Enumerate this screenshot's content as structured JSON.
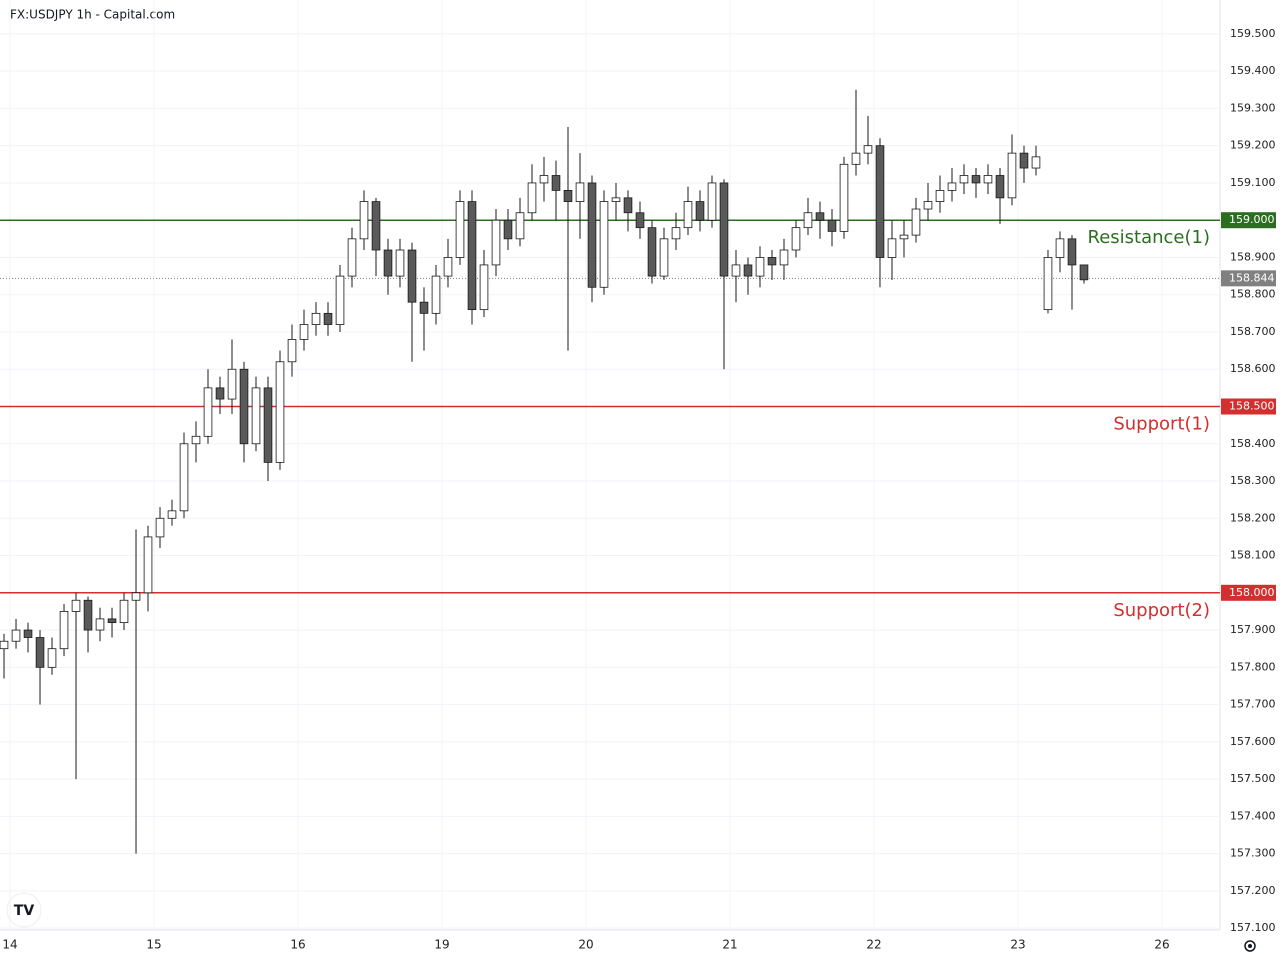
{
  "chart_data": {
    "type": "candlestick",
    "title": "FX:USDJPY 1h - Capital.com",
    "x": [
      -1,
      1,
      3,
      5,
      7,
      9,
      11,
      13,
      15,
      17,
      19,
      21,
      23,
      25,
      27,
      29,
      31,
      33,
      35,
      37,
      39,
      41,
      43,
      45,
      47,
      49,
      51,
      53,
      55,
      57,
      59,
      61,
      63,
      65,
      67,
      69,
      71,
      73,
      75,
      77,
      79,
      81,
      83,
      85,
      87,
      89,
      91,
      93,
      95,
      97,
      99,
      101,
      103,
      105,
      107,
      109,
      111,
      113,
      115,
      117,
      119,
      121,
      123,
      125,
      127,
      129,
      131,
      133,
      135,
      137,
      139,
      141,
      143,
      145,
      147,
      149,
      151,
      153,
      155,
      157,
      159,
      161,
      163,
      165,
      167,
      169,
      171,
      173,
      175,
      177,
      179
    ],
    "open": [
      157.85,
      157.87,
      157.9,
      157.88,
      157.8,
      157.85,
      157.95,
      157.98,
      157.9,
      157.93,
      157.92,
      157.98,
      158.0,
      158.15,
      158.2,
      158.22,
      158.4,
      158.42,
      158.55,
      158.52,
      158.6,
      158.4,
      158.55,
      158.35,
      158.62,
      158.68,
      158.72,
      158.75,
      158.72,
      158.85,
      158.95,
      159.05,
      158.92,
      158.85,
      158.92,
      158.78,
      158.75,
      158.85,
      158.9,
      159.05,
      158.76,
      158.88,
      159.0,
      158.95,
      159.02,
      159.1,
      159.12,
      159.08,
      159.05,
      159.1,
      158.82,
      159.05,
      159.06,
      159.02,
      158.98,
      158.85,
      158.95,
      158.98,
      159.05,
      159.0,
      159.1,
      158.85,
      158.88,
      158.85,
      158.9,
      158.88,
      158.92,
      158.98,
      159.02,
      159.0,
      158.97,
      159.15,
      159.18,
      159.2,
      158.9,
      158.95,
      158.96,
      159.03,
      159.05,
      159.08,
      159.1,
      159.12,
      159.1,
      159.12,
      159.06,
      159.18,
      159.14,
      158.76,
      158.9,
      158.95,
      158.88
    ],
    "high": [
      157.89,
      157.93,
      157.92,
      157.9,
      157.88,
      157.97,
      158.0,
      157.99,
      157.96,
      157.96,
      158.0,
      158.17,
      158.18,
      158.23,
      158.25,
      158.43,
      158.46,
      158.6,
      158.58,
      158.68,
      158.62,
      158.58,
      158.58,
      158.65,
      158.72,
      158.76,
      158.78,
      158.78,
      158.88,
      158.98,
      159.08,
      159.06,
      158.95,
      158.95,
      158.94,
      158.82,
      158.88,
      158.95,
      159.08,
      159.08,
      158.92,
      159.03,
      159.03,
      159.06,
      159.15,
      159.17,
      159.16,
      159.25,
      159.18,
      159.12,
      159.08,
      159.1,
      159.08,
      159.05,
      159.0,
      158.98,
      159.02,
      159.09,
      159.08,
      159.12,
      159.11,
      158.92,
      158.9,
      158.93,
      158.92,
      158.95,
      159.0,
      159.06,
      159.05,
      159.03,
      159.17,
      159.35,
      159.28,
      159.22,
      159.0,
      159.0,
      159.06,
      159.1,
      159.12,
      159.14,
      159.15,
      159.14,
      159.15,
      159.14,
      159.23,
      159.2,
      159.2,
      158.92,
      158.97,
      158.96,
      158.87
    ],
    "low": [
      157.77,
      157.85,
      157.84,
      157.7,
      157.78,
      157.83,
      157.5,
      157.84,
      157.87,
      157.88,
      157.9,
      157.3,
      157.95,
      158.12,
      158.18,
      158.2,
      158.35,
      158.4,
      158.48,
      158.48,
      158.35,
      158.38,
      158.3,
      158.33,
      158.58,
      158.65,
      158.69,
      158.69,
      158.7,
      158.82,
      158.92,
      158.85,
      158.8,
      158.82,
      158.62,
      158.65,
      158.72,
      158.82,
      158.88,
      158.72,
      158.74,
      158.85,
      158.92,
      158.93,
      159.0,
      159.05,
      159.0,
      158.65,
      158.95,
      158.78,
      158.8,
      159.0,
      158.97,
      158.95,
      158.83,
      158.84,
      158.92,
      158.96,
      158.97,
      158.98,
      158.6,
      158.78,
      158.8,
      158.82,
      158.84,
      158.84,
      158.9,
      158.96,
      158.95,
      158.93,
      158.95,
      159.12,
      159.15,
      158.82,
      158.84,
      158.9,
      158.94,
      159.0,
      159.02,
      159.05,
      159.07,
      159.06,
      159.07,
      158.99,
      159.04,
      159.1,
      159.12,
      158.75,
      158.86,
      158.76,
      158.83
    ],
    "close": [
      157.87,
      157.9,
      157.88,
      157.8,
      157.85,
      157.95,
      157.98,
      157.9,
      157.93,
      157.92,
      157.98,
      158.0,
      158.15,
      158.2,
      158.22,
      158.4,
      158.42,
      158.55,
      158.52,
      158.6,
      158.4,
      158.55,
      158.35,
      158.62,
      158.68,
      158.72,
      158.75,
      158.72,
      158.85,
      158.95,
      159.05,
      158.92,
      158.85,
      158.92,
      158.78,
      158.75,
      158.85,
      158.9,
      159.05,
      158.76,
      158.88,
      159.0,
      158.95,
      159.02,
      159.1,
      159.12,
      159.08,
      159.05,
      159.1,
      158.82,
      159.05,
      159.06,
      159.02,
      158.98,
      158.85,
      158.95,
      158.98,
      159.05,
      159.0,
      159.1,
      158.85,
      158.88,
      158.85,
      158.9,
      158.88,
      158.92,
      158.98,
      159.02,
      159.0,
      158.97,
      159.15,
      159.18,
      159.2,
      158.9,
      158.95,
      158.96,
      159.03,
      159.05,
      159.08,
      159.1,
      159.12,
      159.1,
      159.12,
      159.06,
      159.18,
      159.14,
      159.17,
      158.9,
      158.95,
      158.88,
      158.84
    ],
    "up_color": "#ffffff",
    "down_color": "#5a5a5a",
    "outline_color": "#1a1a1a",
    "xlim": [
      -1.67,
      201.67
    ],
    "xticks": [
      {
        "value": 0,
        "label": "14"
      },
      {
        "value": 24,
        "label": "15"
      },
      {
        "value": 48,
        "label": "16"
      },
      {
        "value": 72,
        "label": "19"
      },
      {
        "value": 96,
        "label": "20"
      },
      {
        "value": 120,
        "label": "21"
      },
      {
        "value": 144,
        "label": "22"
      },
      {
        "value": 168,
        "label": "23"
      },
      {
        "value": 192,
        "label": "26"
      }
    ],
    "ylim": [
      157.095,
      159.591
    ],
    "yticks": [
      {
        "value": 157.1,
        "label": "157.100"
      },
      {
        "value": 157.2,
        "label": "157.200"
      },
      {
        "value": 157.3,
        "label": "157.300"
      },
      {
        "value": 157.4,
        "label": "157.400"
      },
      {
        "value": 157.5,
        "label": "157.500"
      },
      {
        "value": 157.6,
        "label": "157.600"
      },
      {
        "value": 157.7,
        "label": "157.700"
      },
      {
        "value": 157.8,
        "label": "157.800"
      },
      {
        "value": 157.9,
        "label": "157.900"
      },
      {
        "value": 158.0,
        "label": "158.000"
      },
      {
        "value": 158.1,
        "label": "158.100"
      },
      {
        "value": 158.2,
        "label": "158.200"
      },
      {
        "value": 158.3,
        "label": "158.300"
      },
      {
        "value": 158.4,
        "label": "158.400"
      },
      {
        "value": 158.5,
        "label": "158.500"
      },
      {
        "value": 158.6,
        "label": "158.600"
      },
      {
        "value": 158.7,
        "label": "158.700"
      },
      {
        "value": 158.8,
        "label": "158.800"
      },
      {
        "value": 158.9,
        "label": "158.900"
      },
      {
        "value": 159.0,
        "label": "159.000"
      },
      {
        "value": 159.1,
        "label": "159.100"
      },
      {
        "value": 159.2,
        "label": "159.200"
      },
      {
        "value": 159.3,
        "label": "159.300"
      },
      {
        "value": 159.4,
        "label": "159.400"
      },
      {
        "value": 159.5,
        "label": "159.500"
      }
    ],
    "grid": true,
    "levels": [
      {
        "name": "Resistance(1)",
        "value": 159.0,
        "value_label": "159.000",
        "color": "#2b6e1f"
      },
      {
        "name": "Support(1)",
        "value": 158.5,
        "value_label": "158.500",
        "color": "#d32f2f"
      },
      {
        "name": "Support(2)",
        "value": 158.0,
        "value_label": "158.000",
        "color": "#d32f2f"
      }
    ],
    "last_price": {
      "value": 158.844,
      "color": "#808080"
    }
  }
}
